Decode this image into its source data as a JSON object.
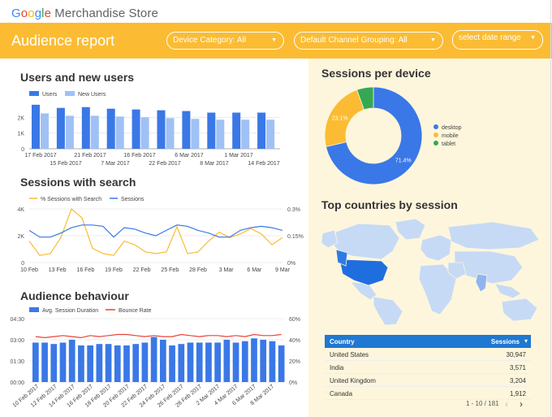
{
  "logo": {
    "g": "G",
    "o1": "o",
    "o2": "o",
    "g2": "g",
    "l": "l",
    "e": "e",
    "rest": " Merchandise Store"
  },
  "header": {
    "title": "Audience report",
    "device_filter": "Device Category: All",
    "channel_filter": "Default Channel Grouping: All",
    "date_filter": "select date range"
  },
  "colors": {
    "header": "#fbbc33",
    "blue": "#3a78e7",
    "light_blue": "#9fc1f5",
    "orange": "#fbbc33",
    "red": "#ea4335",
    "green": "#34a853",
    "panel": "#fdf6dc"
  },
  "users_chart": {
    "title": "Users and new users",
    "chart_data": {
      "type": "bar",
      "series": [
        {
          "name": "Users",
          "values": [
            2.8,
            2.6,
            2.65,
            2.55,
            2.5,
            2.45,
            2.4,
            2.3,
            2.3,
            2.3
          ]
        },
        {
          "name": "New Users",
          "values": [
            2.25,
            2.1,
            2.1,
            2.05,
            2.0,
            1.95,
            1.9,
            1.85,
            1.85,
            1.85
          ]
        }
      ],
      "y_ticks": [
        "0",
        "1K",
        "2K"
      ],
      "ylim": [
        0,
        3
      ],
      "x_labels_top": [
        "17 Feb 2017",
        "21 Feb 2017",
        "16 Feb 2017",
        "6 Mar 2017",
        "1 Mar 2017"
      ],
      "x_labels_bottom": [
        "15 Feb 2017",
        "7 Mar 2017",
        "22 Feb 2017",
        "8 Mar 2017",
        "14 Feb 2017"
      ]
    }
  },
  "search_chart": {
    "title": "Sessions with search",
    "chart_data": {
      "type": "line",
      "series": [
        {
          "name": "% Sessions with Search",
          "values": [
            0.12,
            0.04,
            0.05,
            0.14,
            0.3,
            0.25,
            0.08,
            0.05,
            0.04,
            0.12,
            0.1,
            0.06,
            0.05,
            0.06,
            0.2,
            0.05,
            0.06,
            0.12,
            0.17,
            0.14,
            0.16,
            0.19,
            0.16,
            0.1,
            0.14
          ]
        },
        {
          "name": "Sessions",
          "values": [
            2.4,
            1.9,
            1.9,
            2.2,
            2.6,
            2.8,
            2.8,
            2.7,
            1.9,
            2.6,
            2.5,
            2.2,
            2.0,
            2.4,
            2.8,
            2.7,
            2.4,
            2.2,
            1.9,
            1.9,
            2.4,
            2.6,
            2.7,
            2.6,
            2.4
          ]
        }
      ],
      "y_left_ticks": [
        "0",
        "2K",
        "4K"
      ],
      "y_right_ticks": [
        "0%",
        "0.15%",
        "0.3%"
      ],
      "x_labels": [
        "10 Feb",
        "13 Feb",
        "16 Feb",
        "19 Feb",
        "22 Feb",
        "25 Feb",
        "28 Feb",
        "3 Mar",
        "6 Mar",
        "9 Mar"
      ]
    }
  },
  "behaviour_chart": {
    "title": "Audience behaviour",
    "chart_data": {
      "type": "bar",
      "series": [
        {
          "name": "Avg. Session Duration",
          "values": [
            2.8,
            2.8,
            2.7,
            2.8,
            3.0,
            2.6,
            2.6,
            2.7,
            2.7,
            2.6,
            2.6,
            2.7,
            2.8,
            3.2,
            3.0,
            2.6,
            2.7,
            2.8,
            2.8,
            2.8,
            2.8,
            3.0,
            2.8,
            2.9,
            3.1,
            3.0,
            2.9,
            2.6
          ]
        },
        {
          "name": "Bounce Rate",
          "values": [
            43,
            42,
            43,
            44,
            43,
            42,
            44,
            43,
            44,
            45,
            45,
            44,
            43,
            44,
            43,
            43,
            45,
            44,
            43,
            44,
            44,
            43,
            44,
            43,
            45,
            44,
            44,
            45
          ]
        }
      ],
      "y_left_ticks": [
        "00:00",
        "01:30",
        "03:00",
        "04:30"
      ],
      "y_right_ticks": [
        "0%",
        "20%",
        "40%",
        "60%"
      ],
      "x_labels": [
        "10 Feb 2017",
        "12 Feb 2017",
        "14 Feb 2017",
        "16 Feb 2017",
        "18 Feb 2017",
        "20 Feb 2017",
        "22 Feb 2017",
        "24 Feb 2017",
        "26 Feb 2017",
        "28 Feb 2017",
        "2 Mar 2017",
        "4 Mar 2017",
        "6 Mar 2017",
        "8 Mar 2017"
      ]
    }
  },
  "device_chart": {
    "title": "Sessions per device",
    "chart_data": {
      "type": "pie",
      "slices": [
        {
          "name": "desktop",
          "value": 71.4,
          "label": "71.4%"
        },
        {
          "name": "mobile",
          "value": 23.1,
          "label": "23.1%"
        },
        {
          "name": "tablet",
          "value": 5.5,
          "label": ""
        }
      ]
    }
  },
  "countries": {
    "title": "Top countries by session",
    "col_country": "Country",
    "col_sessions": "Sessions",
    "sort_icon": "arrow-down-icon",
    "rows": [
      {
        "country": "United States",
        "sessions": "30,947"
      },
      {
        "country": "India",
        "sessions": "3,571"
      },
      {
        "country": "United Kingdom",
        "sessions": "3,204"
      },
      {
        "country": "Canada",
        "sessions": "1,912"
      }
    ],
    "pager": "1 - 10 / 181"
  }
}
